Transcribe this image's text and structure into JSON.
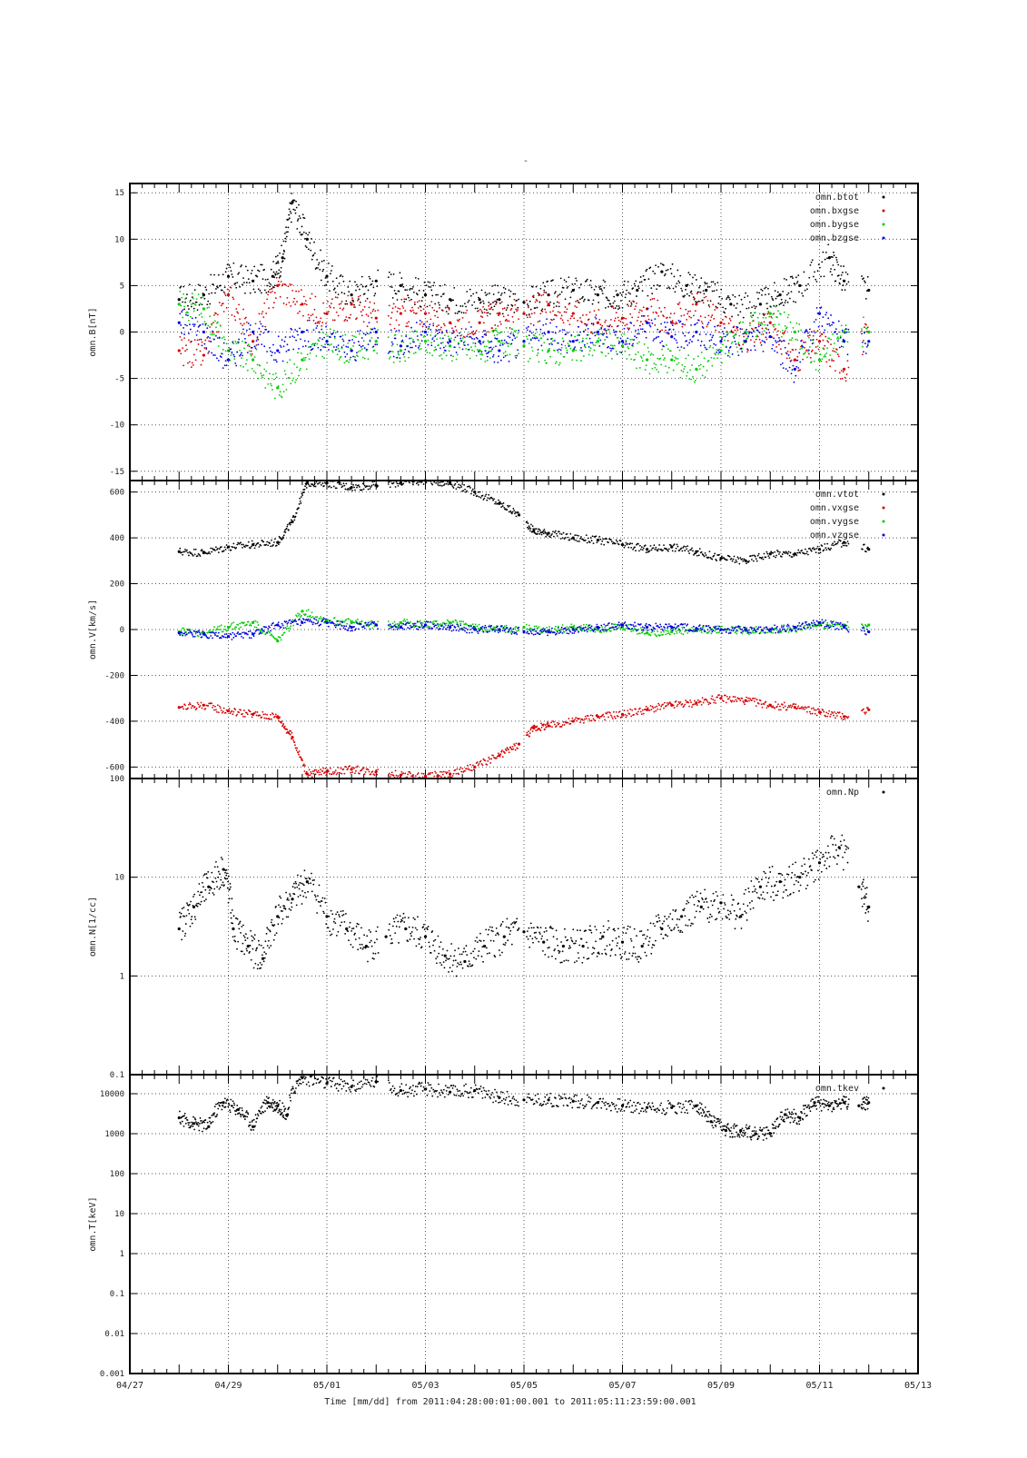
{
  "page_title": "-",
  "x_axis": {
    "tick_labels": [
      "04/27",
      "04/29",
      "05/01",
      "05/03",
      "05/05",
      "05/07",
      "05/09",
      "05/11",
      "05/13"
    ],
    "label": "Time [mm/dd]  from 2011:04:28:00:01:00.001  to  2011:05:11:23:59:00.001"
  },
  "colors": {
    "black": "#000000",
    "red": "#d40000",
    "green": "#00cc00",
    "blue": "#0000e0"
  },
  "chart_data": [
    {
      "type": "scatter",
      "ylabel": "omn.B[nT]",
      "ylim": [
        -16,
        16
      ],
      "yticks": [
        -15,
        -10,
        -5,
        0,
        5,
        10,
        15
      ],
      "grid": true,
      "legend_position": "top-right",
      "x_range": [
        "2011-04-27",
        "2011-05-13"
      ],
      "x_unit": "day of month since 04/27 00:00",
      "series": [
        {
          "name": "omn.btot",
          "color": "#000000",
          "x": [
            1.0,
            1.5,
            2.0,
            2.5,
            2.9,
            3.1,
            3.3,
            3.6,
            4.0,
            4.5,
            5.0,
            5.5,
            6.0,
            6.5,
            7.1,
            7.5,
            8.0,
            8.5,
            9.0,
            9.5,
            9.9,
            10.3,
            10.8,
            11.3,
            11.7,
            12.2,
            12.8,
            13.2,
            13.6,
            14.2,
            14.5,
            15.0
          ],
          "values": [
            3.5,
            4.0,
            6.0,
            5.5,
            6.0,
            8.0,
            14.0,
            10.0,
            6.0,
            4.0,
            5.5,
            5.0,
            4.0,
            3.5,
            3.5,
            3.5,
            3.2,
            4.0,
            4.5,
            4.0,
            4.0,
            4.5,
            6.5,
            5.0,
            4.5,
            3.0,
            3.0,
            4.0,
            5.0,
            8.0,
            5.5,
            4.5
          ]
        },
        {
          "name": "omn.bxgse",
          "color": "#d40000",
          "x": [
            1.0,
            1.5,
            2.0,
            2.5,
            3.0,
            3.5,
            4.0,
            4.5,
            5.0,
            5.5,
            6.0,
            6.5,
            7.1,
            7.5,
            8.0,
            8.5,
            9.0,
            9.5,
            10.0,
            10.5,
            11.0,
            11.5,
            12.0,
            12.5,
            13.0,
            13.5,
            14.0,
            14.5,
            15.0
          ],
          "values": [
            -2.0,
            -2.5,
            4.0,
            -1.0,
            5.0,
            3.0,
            2.0,
            3.0,
            1.5,
            2.0,
            2.0,
            1.0,
            1.0,
            2.0,
            2.0,
            3.0,
            2.0,
            1.0,
            1.5,
            2.5,
            1.0,
            3.0,
            1.0,
            -1.0,
            1.0,
            -3.0,
            -1.0,
            -4.0,
            0.0
          ]
        },
        {
          "name": "omn.bygse",
          "color": "#00cc00",
          "x": [
            1.0,
            1.5,
            2.0,
            2.5,
            3.0,
            3.5,
            4.0,
            4.5,
            5.0,
            5.5,
            6.0,
            6.5,
            7.1,
            7.5,
            8.0,
            8.5,
            9.0,
            9.5,
            10.0,
            10.5,
            11.0,
            11.5,
            12.0,
            12.5,
            13.0,
            13.5,
            14.0,
            14.5,
            15.0
          ],
          "values": [
            3.0,
            2.5,
            -2.0,
            -3.0,
            -6.0,
            -3.0,
            -1.0,
            -2.0,
            -1.0,
            -2.0,
            -1.0,
            -1.5,
            -2.0,
            -1.0,
            -1.5,
            -2.0,
            -2.0,
            -1.0,
            -1.5,
            -3.0,
            -3.0,
            -4.0,
            -2.0,
            0.0,
            2.0,
            0.0,
            -3.0,
            0.0,
            0.0
          ]
        },
        {
          "name": "omn.bzgse",
          "color": "#0000e0",
          "x": [
            1.0,
            1.5,
            2.0,
            2.5,
            3.0,
            3.5,
            4.0,
            4.5,
            5.0,
            5.5,
            6.0,
            6.5,
            7.1,
            7.5,
            8.0,
            8.5,
            9.0,
            9.5,
            10.0,
            10.5,
            11.0,
            11.5,
            12.0,
            12.5,
            13.0,
            13.5,
            14.0,
            14.5,
            15.0
          ],
          "values": [
            1.0,
            0.0,
            -3.0,
            0.0,
            -2.0,
            0.0,
            -1.0,
            -2.0,
            0.0,
            -1.5,
            0.0,
            -1.0,
            -1.0,
            -2.0,
            -1.0,
            0.0,
            -1.0,
            0.0,
            -1.0,
            1.0,
            -0.5,
            0.0,
            -1.0,
            -1.0,
            -0.5,
            -4.0,
            2.0,
            -1.0,
            -1.0
          ]
        }
      ]
    },
    {
      "type": "scatter",
      "ylabel": "omn.V[km/s]",
      "ylim": [
        -650,
        650
      ],
      "yticks": [
        -600,
        -400,
        -200,
        0,
        200,
        400,
        600
      ],
      "grid": true,
      "legend_position": "top-right",
      "x_range": [
        "2011-04-27",
        "2011-05-13"
      ],
      "x_unit": "day of month since 04/27 00:00",
      "series": [
        {
          "name": "omn.vtot",
          "color": "#000000",
          "x": [
            1.0,
            1.5,
            2.0,
            2.5,
            3.0,
            3.3,
            3.6,
            4.0,
            4.5,
            5.0,
            5.5,
            6.0,
            6.5,
            7.0,
            7.5,
            7.9,
            8.2,
            8.5,
            9.0,
            9.5,
            10.0,
            10.5,
            11.0,
            11.5,
            12.0,
            12.5,
            13.0,
            13.5,
            14.0,
            14.5,
            15.0
          ],
          "values": [
            340,
            335,
            360,
            370,
            380,
            470,
            640,
            640,
            620,
            630,
            640,
            650,
            640,
            600,
            550,
            500,
            430,
            420,
            400,
            390,
            370,
            350,
            360,
            340,
            310,
            300,
            330,
            330,
            350,
            380,
            350
          ]
        },
        {
          "name": "omn.vxgse",
          "color": "#d40000",
          "x": [
            1.0,
            1.5,
            2.0,
            2.5,
            3.0,
            3.3,
            3.6,
            4.0,
            4.5,
            5.0,
            5.5,
            6.0,
            6.5,
            7.0,
            7.5,
            7.9,
            8.2,
            8.5,
            9.0,
            9.5,
            10.0,
            10.5,
            11.0,
            11.5,
            12.0,
            12.5,
            13.0,
            13.5,
            14.0,
            14.5,
            15.0
          ],
          "values": [
            -340,
            -330,
            -355,
            -370,
            -380,
            -470,
            -630,
            -620,
            -610,
            -620,
            -635,
            -640,
            -630,
            -600,
            -550,
            -500,
            -430,
            -420,
            -400,
            -380,
            -370,
            -350,
            -330,
            -320,
            -300,
            -310,
            -330,
            -340,
            -360,
            -380,
            -350
          ]
        },
        {
          "name": "omn.vygse",
          "color": "#00cc00",
          "x": [
            1.0,
            1.5,
            2.0,
            2.5,
            3.0,
            3.5,
            4.0,
            4.5,
            5.0,
            5.5,
            6.0,
            6.5,
            7.0,
            7.5,
            8.0,
            8.5,
            9.0,
            9.5,
            10.0,
            10.5,
            11.0,
            11.5,
            12.0,
            12.5,
            13.0,
            13.5,
            14.0,
            14.5,
            15.0
          ],
          "values": [
            -10,
            -15,
            10,
            30,
            -50,
            80,
            40,
            30,
            20,
            30,
            20,
            30,
            10,
            0,
            10,
            -5,
            10,
            0,
            10,
            -15,
            -10,
            -5,
            0,
            -5,
            0,
            5,
            20,
            20,
            20
          ]
        },
        {
          "name": "omn.vzgse",
          "color": "#0000e0",
          "x": [
            1.0,
            1.5,
            2.0,
            2.5,
            3.0,
            3.5,
            4.0,
            4.5,
            5.0,
            5.5,
            6.0,
            6.5,
            7.0,
            7.5,
            8.0,
            8.5,
            9.0,
            9.5,
            10.0,
            10.5,
            11.0,
            11.5,
            12.0,
            12.5,
            13.0,
            13.5,
            14.0,
            14.5,
            15.0
          ],
          "values": [
            -15,
            -20,
            -30,
            -20,
            20,
            30,
            30,
            10,
            20,
            10,
            20,
            10,
            0,
            0,
            -10,
            -10,
            0,
            10,
            20,
            10,
            10,
            5,
            0,
            0,
            0,
            10,
            30,
            10,
            -10
          ]
        }
      ]
    },
    {
      "type": "scatter",
      "ylabel": "omn.N[1/cc]",
      "yscale": "log",
      "ylim": [
        0.1,
        100
      ],
      "yticks": [
        0.1,
        1,
        10,
        100
      ],
      "ytick_labels": [
        "0.1",
        "1",
        "10",
        "100"
      ],
      "grid": true,
      "legend_position": "top-right",
      "x_range": [
        "2011-04-27",
        "2011-05-13"
      ],
      "x_unit": "day of month since 04/27 00:00",
      "series": [
        {
          "name": "omn.Np",
          "color": "#000000",
          "x": [
            1.0,
            1.3,
            1.6,
            1.9,
            2.1,
            2.4,
            2.7,
            3.0,
            3.3,
            3.6,
            4.0,
            4.4,
            4.8,
            5.2,
            5.6,
            6.0,
            6.4,
            6.8,
            7.2,
            7.6,
            8.0,
            8.4,
            8.8,
            9.2,
            9.6,
            10.0,
            10.4,
            10.8,
            11.2,
            11.6,
            12.0,
            12.4,
            12.8,
            13.2,
            13.6,
            14.0,
            14.4,
            14.8,
            15.0
          ],
          "values": [
            3.0,
            5.0,
            8.0,
            12.0,
            3.0,
            2.0,
            1.5,
            4.0,
            6.0,
            9.0,
            4.0,
            3.0,
            2.0,
            2.5,
            3.0,
            2.5,
            1.6,
            1.4,
            2.0,
            2.5,
            2.8,
            2.2,
            2.0,
            2.0,
            2.5,
            2.2,
            2.0,
            3.0,
            4.0,
            5.0,
            5.5,
            4.0,
            8.0,
            9.0,
            10.0,
            14.0,
            20.0,
            8.0,
            5.0
          ]
        }
      ]
    },
    {
      "type": "scatter",
      "ylabel": "omn.T[keV]",
      "yscale": "log",
      "ylim": [
        0.001,
        30000
      ],
      "yticks": [
        0.001,
        0.01,
        0.1,
        1,
        10,
        100,
        1000,
        10000
      ],
      "ytick_labels": [
        "0.001",
        "0.01",
        "0.1",
        "1",
        "10",
        "100",
        "1000",
        "10000"
      ],
      "grid": true,
      "legend_position": "top-right",
      "x_range": [
        "2011-04-27",
        "2011-05-13"
      ],
      "x_unit": "day of month since 04/27 00:00",
      "series": [
        {
          "name": "omn.tkev",
          "color": "#000000",
          "x": [
            1.0,
            1.3,
            1.6,
            1.9,
            2.2,
            2.5,
            2.8,
            3.0,
            3.2,
            3.5,
            4.0,
            4.5,
            5.0,
            5.5,
            6.0,
            6.5,
            7.0,
            7.5,
            8.0,
            8.5,
            9.0,
            9.5,
            10.0,
            10.5,
            11.0,
            11.5,
            11.8,
            12.1,
            12.4,
            12.7,
            13.0,
            13.3,
            13.6,
            13.9,
            14.2,
            14.5,
            14.8,
            15.0
          ],
          "values": [
            2500,
            1800,
            1500,
            6000,
            4000,
            1500,
            6000,
            5000,
            3000,
            25000,
            18000,
            15000,
            20000,
            12000,
            13000,
            11000,
            12000,
            8000,
            7000,
            7000,
            6500,
            6000,
            5000,
            4500,
            4500,
            5000,
            2000,
            1200,
            1200,
            1000,
            1000,
            3000,
            2500,
            6000,
            5000,
            6000,
            5000,
            6000
          ]
        }
      ]
    }
  ]
}
